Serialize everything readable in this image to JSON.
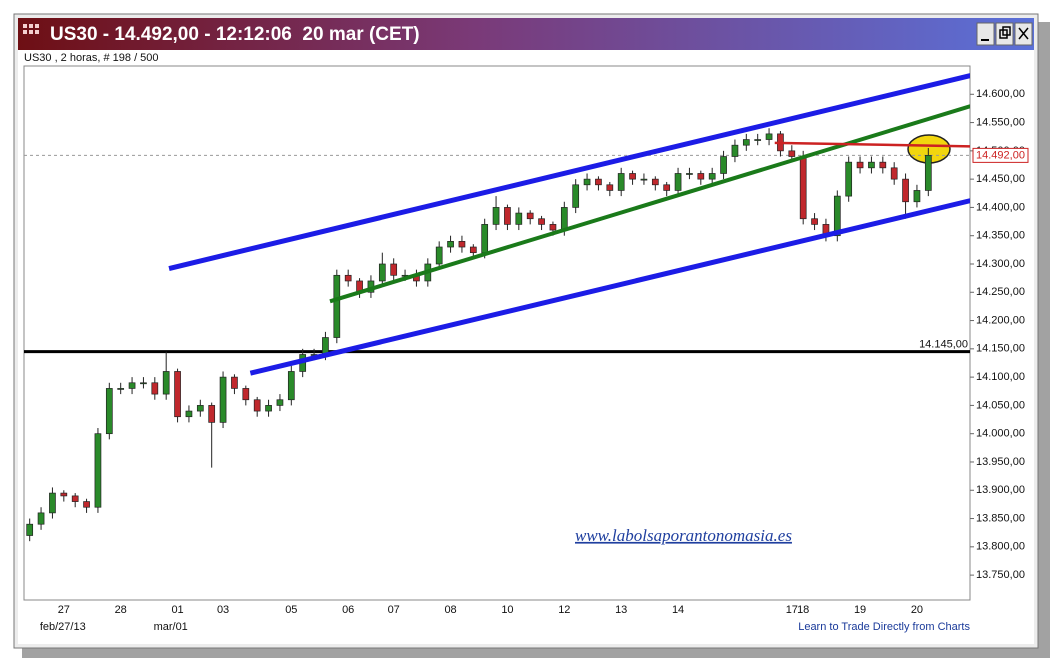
{
  "chart_data": {
    "type": "candlestick",
    "title": "US30 - 14.492,00 - 12:12:06  20 mar (CET)",
    "subtitle": "US30 , 2 horas, # 198 / 500",
    "watermark": "www.labolsaporantonomasia.es",
    "footer_link": "Learn to Trade Directly from Charts",
    "date_labels": [
      "feb/27/13",
      "mar/01"
    ],
    "up_color": "#2a8a2a",
    "down_color": "#c0282d",
    "categories": [
      null,
      null,
      null,
      "27",
      null,
      null,
      null,
      null,
      "28",
      null,
      null,
      null,
      null,
      "01",
      null,
      null,
      null,
      "03",
      null,
      null,
      null,
      null,
      null,
      "05",
      null,
      null,
      null,
      null,
      "06",
      null,
      null,
      null,
      "07",
      null,
      null,
      null,
      null,
      "08",
      null,
      null,
      null,
      null,
      "10",
      null,
      null,
      null,
      null,
      "12",
      null,
      null,
      null,
      null,
      "13",
      null,
      null,
      null,
      null,
      "14",
      null,
      null,
      null,
      null,
      null,
      null,
      null,
      null,
      null,
      "17",
      "18",
      null,
      null,
      null,
      null,
      "19",
      null,
      null,
      null,
      null,
      "20",
      null
    ],
    "open": [
      13820,
      13840,
      13860,
      13895,
      13890,
      13880,
      13870,
      14000,
      14080,
      14080,
      14090,
      14090,
      14070,
      14110,
      14030,
      14040,
      14050,
      14020,
      14100,
      14080,
      14060,
      14040,
      14050,
      14060,
      14110,
      14140,
      14140,
      14170,
      14280,
      14270,
      14250,
      14270,
      14300,
      14280,
      14280,
      14270,
      14300,
      14330,
      14340,
      14330,
      14320,
      14370,
      14400,
      14370,
      14390,
      14380,
      14370,
      14360,
      14400,
      14440,
      14450,
      14440,
      14430,
      14460,
      14450,
      14450,
      14440,
      14430,
      14460,
      14460,
      14450,
      14460,
      14490,
      14510,
      14520,
      14520,
      14530,
      14500,
      14490,
      14380,
      14370,
      14350,
      14420,
      14480,
      14470,
      14480,
      14470,
      14450,
      14410,
      14430
    ],
    "high": [
      13850,
      13870,
      13905,
      13900,
      13895,
      13885,
      14010,
      14090,
      14090,
      14100,
      14100,
      14100,
      14145,
      14115,
      14050,
      14060,
      14055,
      14110,
      14105,
      14085,
      14065,
      14060,
      14070,
      14120,
      14150,
      14150,
      14180,
      14290,
      14290,
      14275,
      14280,
      14320,
      14310,
      14290,
      14290,
      14310,
      14340,
      14350,
      14350,
      14335,
      14380,
      14420,
      14405,
      14400,
      14395,
      14385,
      14375,
      14410,
      14450,
      14460,
      14455,
      14445,
      14470,
      14465,
      14460,
      14455,
      14445,
      14470,
      14470,
      14465,
      14470,
      14500,
      14520,
      14530,
      14530,
      14540,
      14535,
      14510,
      14500,
      14390,
      14380,
      14430,
      14490,
      14490,
      14490,
      14490,
      14480,
      14460,
      14440,
      14505
    ],
    "low": [
      13810,
      13830,
      13850,
      13880,
      13870,
      13860,
      13860,
      13990,
      14070,
      14070,
      14080,
      14060,
      14060,
      14020,
      14020,
      14030,
      13940,
      14010,
      14070,
      14050,
      14030,
      14030,
      14040,
      14050,
      14100,
      14130,
      14130,
      14160,
      14260,
      14240,
      14240,
      14260,
      14270,
      14270,
      14260,
      14260,
      14290,
      14320,
      14320,
      14310,
      14310,
      14360,
      14360,
      14360,
      14370,
      14360,
      14350,
      14350,
      14390,
      14430,
      14430,
      14420,
      14420,
      14440,
      14440,
      14430,
      14420,
      14420,
      14450,
      14440,
      14440,
      14450,
      14480,
      14500,
      14510,
      14510,
      14490,
      14480,
      14370,
      14360,
      14340,
      14340,
      14410,
      14460,
      14460,
      14460,
      14440,
      14380,
      14400,
      14420
    ],
    "close": [
      13840,
      13860,
      13895,
      13890,
      13880,
      13870,
      14000,
      14080,
      14080,
      14090,
      14090,
      14070,
      14110,
      14030,
      14040,
      14050,
      14020,
      14100,
      14080,
      14060,
      14040,
      14050,
      14060,
      14110,
      14140,
      14140,
      14170,
      14280,
      14270,
      14250,
      14270,
      14300,
      14280,
      14280,
      14270,
      14300,
      14330,
      14340,
      14330,
      14320,
      14370,
      14400,
      14370,
      14390,
      14380,
      14370,
      14360,
      14400,
      14440,
      14450,
      14440,
      14430,
      14460,
      14450,
      14450,
      14440,
      14430,
      14460,
      14460,
      14450,
      14460,
      14490,
      14510,
      14520,
      14520,
      14530,
      14500,
      14490,
      14380,
      14370,
      14350,
      14420,
      14480,
      14470,
      14480,
      14470,
      14450,
      14410,
      14430,
      14492
    ],
    "ylim": [
      13706,
      14650
    ],
    "yticks": [
      {
        "value": 13750,
        "label": "13.750,00"
      },
      {
        "value": 13800,
        "label": "13.800,00"
      },
      {
        "value": 13850,
        "label": "13.850,00"
      },
      {
        "value": 13900,
        "label": "13.900,00"
      },
      {
        "value": 13950,
        "label": "13.950,00"
      },
      {
        "value": 14000,
        "label": "14.000,00"
      },
      {
        "value": 14050,
        "label": "14.050,00"
      },
      {
        "value": 14100,
        "label": "14.100,00"
      },
      {
        "value": 14150,
        "label": "14.150,00"
      },
      {
        "value": 14200,
        "label": "14.200,00"
      },
      {
        "value": 14250,
        "label": "14.250,00"
      },
      {
        "value": 14300,
        "label": "14.300,00"
      },
      {
        "value": 14350,
        "label": "14.350,00"
      },
      {
        "value": 14400,
        "label": "14.400,00"
      },
      {
        "value": 14450,
        "label": "14.450,00"
      },
      {
        "value": 14500,
        "label": "14.500,00"
      },
      {
        "value": 14550,
        "label": "14.550,00"
      },
      {
        "value": 14600,
        "label": "14.600,00"
      }
    ],
    "trendlines": [
      {
        "color": "#1c1ce6",
        "width": 5,
        "x": [
          12.25,
          82.7
        ],
        "values": [
          14292,
          14633
        ]
      },
      {
        "color": "#1c1ce6",
        "width": 5,
        "x": [
          19.4,
          82.7
        ],
        "values": [
          14107,
          14412
        ]
      },
      {
        "color": "#1a7a1a",
        "width": 4,
        "x": [
          26.4,
          82.7
        ],
        "values": [
          14234,
          14579
        ]
      },
      {
        "color": "#cc2222",
        "width": 2.5,
        "x": [
          65.5,
          82.7
        ],
        "values": [
          14514,
          14508
        ]
      }
    ],
    "levels": [
      {
        "value": 14145,
        "label": "14.145,00",
        "color": "#000000"
      }
    ],
    "last": {
      "value": 14492,
      "label": "14.492,00",
      "color": "#cc2222"
    }
  }
}
